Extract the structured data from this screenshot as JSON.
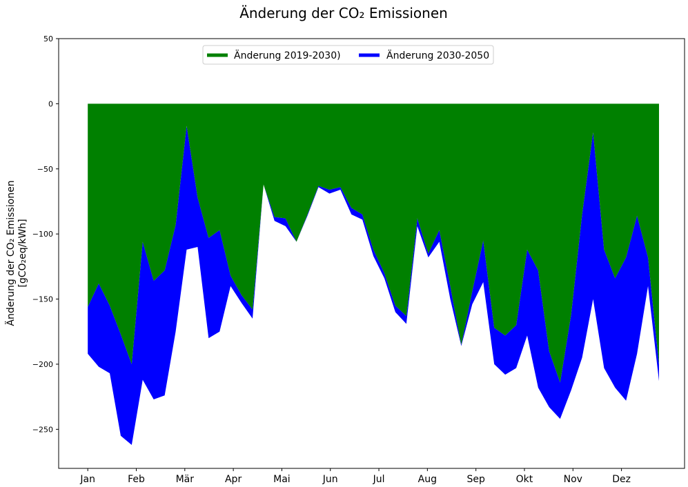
{
  "chart_data": {
    "type": "area",
    "title": "Änderung der CO₂ Emissionen",
    "ylabel_line1": "Änderung der CO₂ Emissionen",
    "ylabel_line2": "[gCO₂eq/kWh]",
    "ylim": [
      -280,
      50
    ],
    "yticks": [
      50,
      0,
      -50,
      -100,
      -150,
      -200,
      -250
    ],
    "ytick_labels": [
      "50",
      "0",
      "−50",
      "−100",
      "−150",
      "−200",
      "−250"
    ],
    "xlim": [
      -0.6,
      12.3
    ],
    "month_ticks": [
      "Jan",
      "Feb",
      "Mär",
      "Apr",
      "Mai",
      "Jun",
      "Jul",
      "Aug",
      "Sep",
      "Okt",
      "Nov",
      "Dez"
    ],
    "legend_placement": "top-center",
    "grid": false,
    "colors": {
      "series1": "#008000",
      "series2": "#0000ff"
    },
    "series": [
      {
        "name": "Änderung 2019-2030)",
        "color": "#008000",
        "values": [
          -156,
          -138,
          -155,
          -177,
          -200,
          -106,
          -136,
          -128,
          -93,
          -17,
          -72,
          -103,
          -97,
          -132,
          -147,
          -158,
          -62,
          -87,
          -88,
          -106,
          -85,
          -63,
          -66,
          -64,
          -80,
          -85,
          -112,
          -130,
          -155,
          -163,
          -88,
          -115,
          -97,
          -140,
          -185,
          -144,
          -105,
          -172,
          -178,
          -170,
          -112,
          -128,
          -190,
          -214,
          -162,
          -85,
          -22,
          -112,
          -134,
          -118,
          -86,
          -118,
          -200
        ]
      },
      {
        "name": "Änderung 2030-2050",
        "color": "#0000ff",
        "values": [
          -192,
          -202,
          -207,
          -255,
          -262,
          -212,
          -227,
          -224,
          -175,
          -112,
          -110,
          -180,
          -175,
          -140,
          -153,
          -165,
          -62,
          -90,
          -94,
          -106,
          -86,
          -64,
          -69,
          -66,
          -85,
          -89,
          -117,
          -134,
          -160,
          -169,
          -94,
          -118,
          -106,
          -150,
          -186,
          -154,
          -137,
          -200,
          -208,
          -203,
          -178,
          -218,
          -233,
          -242,
          -220,
          -195,
          -150,
          -203,
          -218,
          -228,
          -192,
          -140,
          -213
        ]
      }
    ]
  }
}
